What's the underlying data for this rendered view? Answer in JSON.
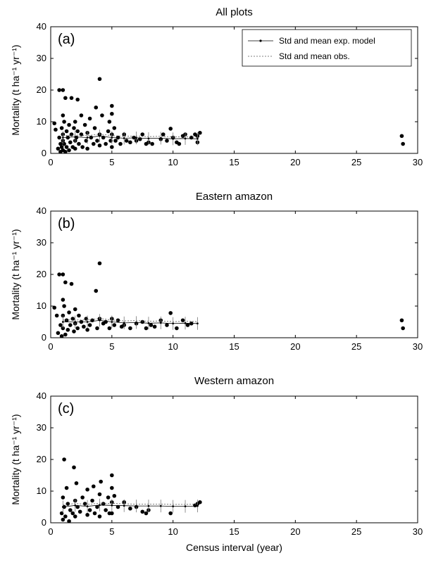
{
  "chart_data": [
    {
      "type": "scatter",
      "title": "All plots",
      "panel_label": "(a)",
      "ylabel": "Mortality (t ha⁻¹ yr⁻¹)",
      "xlabel": "",
      "xlim": [
        0,
        30
      ],
      "ylim": [
        0,
        40
      ],
      "xticks": [
        "0",
        "5",
        "10",
        "15",
        "20",
        "25",
        "30"
      ],
      "yticks": [
        "0",
        "10",
        "20",
        "30",
        "40"
      ],
      "legend": {
        "placement": "top-right",
        "entries": [
          "Std and mean exp. model",
          "Std and mean obs."
        ]
      },
      "series": [
        {
          "name": "Std and mean obs.",
          "points": [
            [
              0.3,
              9.5
            ],
            [
              0.4,
              7.5
            ],
            [
              0.6,
              1.5
            ],
            [
              0.7,
              5
            ],
            [
              0.7,
              20
            ],
            [
              0.8,
              3
            ],
            [
              0.8,
              0.5
            ],
            [
              0.9,
              8
            ],
            [
              0.9,
              2
            ],
            [
              1,
              12
            ],
            [
              1,
              6
            ],
            [
              1,
              4
            ],
            [
              1,
              1
            ],
            [
              1,
              20
            ],
            [
              1.1,
              10
            ],
            [
              1.1,
              3
            ],
            [
              1.2,
              17.5
            ],
            [
              1.2,
              0.5
            ],
            [
              1.3,
              7
            ],
            [
              1.3,
              2
            ],
            [
              1.4,
              5
            ],
            [
              1.5,
              9
            ],
            [
              1.5,
              1
            ],
            [
              1.6,
              3.5
            ],
            [
              1.7,
              6
            ],
            [
              1.7,
              17.5
            ],
            [
              1.8,
              2
            ],
            [
              1.9,
              8
            ],
            [
              2,
              4
            ],
            [
              2,
              10
            ],
            [
              2,
              1.5
            ],
            [
              2.1,
              5
            ],
            [
              2.2,
              17
            ],
            [
              2.2,
              7
            ],
            [
              2.3,
              3
            ],
            [
              2.5,
              12
            ],
            [
              2.5,
              6
            ],
            [
              2.6,
              2
            ],
            [
              2.8,
              9
            ],
            [
              2.9,
              4
            ],
            [
              3,
              1.5
            ],
            [
              3,
              6.5
            ],
            [
              3.2,
              11
            ],
            [
              3.3,
              5
            ],
            [
              3.5,
              3
            ],
            [
              3.6,
              8
            ],
            [
              3.7,
              14.5
            ],
            [
              3.8,
              4
            ],
            [
              4,
              23.5
            ],
            [
              4,
              6
            ],
            [
              4,
              2.5
            ],
            [
              4.2,
              12
            ],
            [
              4.3,
              5
            ],
            [
              4.5,
              3
            ],
            [
              4.7,
              7
            ],
            [
              4.8,
              10
            ],
            [
              4.9,
              4
            ],
            [
              5,
              15
            ],
            [
              5,
              12.5
            ],
            [
              5,
              6
            ],
            [
              5,
              2
            ],
            [
              5.2,
              8
            ],
            [
              5.3,
              4
            ],
            [
              5.5,
              5
            ],
            [
              5.7,
              3
            ],
            [
              6,
              6
            ],
            [
              6.2,
              4
            ],
            [
              6.5,
              3.5
            ],
            [
              6.8,
              5
            ],
            [
              7,
              4
            ],
            [
              7.3,
              4.5
            ],
            [
              7.5,
              6
            ],
            [
              7.8,
              3
            ],
            [
              8,
              3.5
            ],
            [
              8.3,
              3
            ],
            [
              9,
              4.5
            ],
            [
              9.2,
              6
            ],
            [
              9.5,
              4
            ],
            [
              9.8,
              7.8
            ],
            [
              10,
              5
            ],
            [
              10.3,
              3.5
            ],
            [
              10.5,
              3
            ],
            [
              10.8,
              5.5
            ],
            [
              11,
              6
            ],
            [
              11.5,
              5
            ],
            [
              11.8,
              6
            ],
            [
              12,
              5.5
            ],
            [
              12,
              3.5
            ],
            [
              12.2,
              6.5
            ],
            [
              28.7,
              5.5
            ],
            [
              28.8,
              3
            ]
          ]
        },
        {
          "name": "Std and mean exp. model",
          "points": [
            [
              1,
              5
            ],
            [
              2,
              5.2
            ],
            [
              3,
              5
            ],
            [
              4,
              5.5
            ],
            [
              5,
              5
            ],
            [
              6,
              4.8
            ],
            [
              7,
              4.9
            ],
            [
              8,
              4.7
            ],
            [
              9,
              4.8
            ],
            [
              10,
              4.6
            ],
            [
              11,
              4.7
            ],
            [
              12,
              4.6
            ]
          ]
        }
      ]
    },
    {
      "type": "scatter",
      "title": "Eastern amazon",
      "panel_label": "(b)",
      "ylabel": "Mortality (t ha⁻¹ yr⁻¹)",
      "xlabel": "",
      "xlim": [
        0,
        30
      ],
      "ylim": [
        0,
        40
      ],
      "xticks": [
        "0",
        "5",
        "10",
        "15",
        "20",
        "25",
        "30"
      ],
      "yticks": [
        "0",
        "10",
        "20",
        "30",
        "40"
      ],
      "series": [
        {
          "name": "Std and mean obs.",
          "points": [
            [
              0.3,
              9.5
            ],
            [
              0.5,
              7
            ],
            [
              0.6,
              1.5
            ],
            [
              0.7,
              20
            ],
            [
              0.8,
              4
            ],
            [
              0.9,
              0.5
            ],
            [
              1,
              12
            ],
            [
              1,
              7
            ],
            [
              1,
              3
            ],
            [
              1,
              20
            ],
            [
              1.1,
              10
            ],
            [
              1.2,
              17.5
            ],
            [
              1.2,
              1
            ],
            [
              1.3,
              5.5
            ],
            [
              1.4,
              2.5
            ],
            [
              1.5,
              8
            ],
            [
              1.6,
              4
            ],
            [
              1.7,
              17
            ],
            [
              1.8,
              6
            ],
            [
              1.9,
              2
            ],
            [
              2,
              9
            ],
            [
              2,
              4.5
            ],
            [
              2.2,
              3
            ],
            [
              2.3,
              7
            ],
            [
              2.5,
              5
            ],
            [
              2.7,
              3.5
            ],
            [
              2.9,
              6
            ],
            [
              3,
              2.5
            ],
            [
              3.2,
              4
            ],
            [
              3.4,
              5.5
            ],
            [
              3.7,
              14.8
            ],
            [
              3.8,
              3
            ],
            [
              4,
              23.5
            ],
            [
              4,
              6
            ],
            [
              4.3,
              4.5
            ],
            [
              4.5,
              5
            ],
            [
              4.8,
              3
            ],
            [
              5,
              6
            ],
            [
              5.2,
              4
            ],
            [
              5.5,
              5.5
            ],
            [
              5.8,
              3.5
            ],
            [
              6,
              4
            ],
            [
              6.5,
              3
            ],
            [
              7,
              4.5
            ],
            [
              7.5,
              5
            ],
            [
              7.8,
              3
            ],
            [
              8.2,
              4
            ],
            [
              8.5,
              3.5
            ],
            [
              9,
              5.5
            ],
            [
              9.5,
              4
            ],
            [
              9.8,
              7.8
            ],
            [
              10.3,
              3
            ],
            [
              10.8,
              5.5
            ],
            [
              11.2,
              4
            ],
            [
              11.5,
              4.5
            ],
            [
              28.7,
              5.5
            ],
            [
              28.8,
              3
            ]
          ]
        },
        {
          "name": "Std and mean exp. model",
          "points": [
            [
              1,
              5
            ],
            [
              2,
              5
            ],
            [
              3,
              5
            ],
            [
              4,
              5.5
            ],
            [
              5,
              5
            ],
            [
              6,
              4.7
            ],
            [
              7,
              4.8
            ],
            [
              8,
              4.6
            ],
            [
              9,
              4.7
            ],
            [
              10,
              4.5
            ],
            [
              11,
              4.6
            ],
            [
              12,
              4.5
            ]
          ]
        }
      ]
    },
    {
      "type": "scatter",
      "title": "Western amazon",
      "panel_label": "(c)",
      "ylabel": "Mortality (t ha⁻¹ yr⁻¹)",
      "xlabel": "Census interval (year)",
      "xlim": [
        0,
        30
      ],
      "ylim": [
        0,
        40
      ],
      "xticks": [
        "0",
        "5",
        "10",
        "15",
        "20",
        "25",
        "30"
      ],
      "yticks": [
        "0",
        "10",
        "20",
        "30",
        "40"
      ],
      "series": [
        {
          "name": "Std and mean obs.",
          "points": [
            [
              0.9,
              3
            ],
            [
              1,
              8
            ],
            [
              1,
              1
            ],
            [
              1.1,
              20
            ],
            [
              1.1,
              5
            ],
            [
              1.2,
              2
            ],
            [
              1.3,
              11
            ],
            [
              1.4,
              6
            ],
            [
              1.5,
              0.5
            ],
            [
              1.6,
              4
            ],
            [
              1.8,
              3
            ],
            [
              1.9,
              17.5
            ],
            [
              2,
              7
            ],
            [
              2,
              2
            ],
            [
              2.1,
              12.5
            ],
            [
              2.2,
              5
            ],
            [
              2.4,
              3.5
            ],
            [
              2.6,
              8
            ],
            [
              2.8,
              6
            ],
            [
              3,
              2.5
            ],
            [
              3,
              10.5
            ],
            [
              3.2,
              4
            ],
            [
              3.4,
              7
            ],
            [
              3.5,
              11.5
            ],
            [
              3.6,
              3
            ],
            [
              3.8,
              5
            ],
            [
              4,
              9
            ],
            [
              4,
              2
            ],
            [
              4.1,
              13
            ],
            [
              4.3,
              6
            ],
            [
              4.5,
              4
            ],
            [
              4.7,
              8
            ],
            [
              4.8,
              3
            ],
            [
              5,
              15
            ],
            [
              5,
              11
            ],
            [
              5,
              6.5
            ],
            [
              5,
              3
            ],
            [
              5.2,
              8.5
            ],
            [
              5.5,
              5
            ],
            [
              6,
              6.5
            ],
            [
              6.5,
              4.5
            ],
            [
              7,
              5
            ],
            [
              7.5,
              3.5
            ],
            [
              7.8,
              3
            ],
            [
              8,
              4
            ],
            [
              9.8,
              3
            ],
            [
              11.8,
              5.5
            ],
            [
              12,
              6
            ],
            [
              12.2,
              6.5
            ]
          ]
        },
        {
          "name": "Std and mean exp. model",
          "points": [
            [
              1,
              5
            ],
            [
              2,
              5.5
            ],
            [
              3,
              5.2
            ],
            [
              4,
              5.6
            ],
            [
              5,
              5.5
            ],
            [
              6,
              5.4
            ],
            [
              7,
              5.3
            ],
            [
              8,
              5.3
            ],
            [
              9,
              5.3
            ],
            [
              10,
              5.2
            ],
            [
              11,
              5.2
            ],
            [
              12,
              5.3
            ]
          ]
        }
      ]
    }
  ]
}
